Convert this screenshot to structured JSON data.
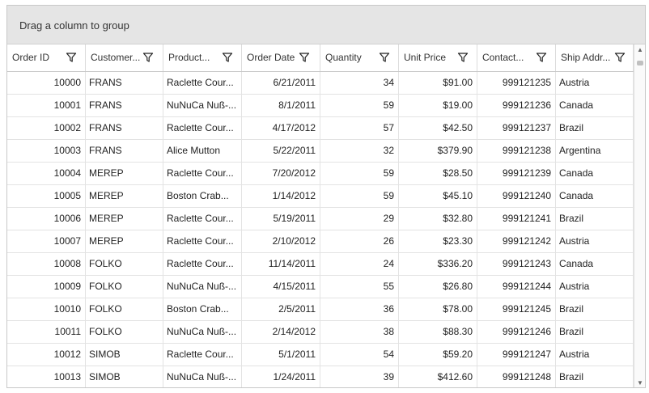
{
  "group_area": {
    "text": "Drag a column to group"
  },
  "columns": [
    {
      "label": "Order ID",
      "icon": "filter-icon"
    },
    {
      "label": "Customer...",
      "icon": "filter-icon"
    },
    {
      "label": "Product...",
      "icon": "filter-icon"
    },
    {
      "label": "Order Date",
      "icon": "filter-icon"
    },
    {
      "label": "Quantity",
      "icon": "filter-icon"
    },
    {
      "label": "Unit Price",
      "icon": "filter-icon"
    },
    {
      "label": "Contact...",
      "icon": "filter-icon"
    },
    {
      "label": "Ship Addr...",
      "icon": "filter-icon"
    }
  ],
  "rows": [
    [
      "10000",
      "FRANS",
      "Raclette Cour...",
      "6/21/2011",
      "34",
      "$91.00",
      "999121235",
      "Austria"
    ],
    [
      "10001",
      "FRANS",
      "NuNuCa Nuß-...",
      "8/1/2011",
      "59",
      "$19.00",
      "999121236",
      "Canada"
    ],
    [
      "10002",
      "FRANS",
      "Raclette Cour...",
      "4/17/2012",
      "57",
      "$42.50",
      "999121237",
      "Brazil"
    ],
    [
      "10003",
      "FRANS",
      "Alice Mutton",
      "5/22/2011",
      "32",
      "$379.90",
      "999121238",
      "Argentina"
    ],
    [
      "10004",
      "MEREP",
      "Raclette Cour...",
      "7/20/2012",
      "59",
      "$28.50",
      "999121239",
      "Canada"
    ],
    [
      "10005",
      "MEREP",
      "Boston Crab...",
      "1/14/2012",
      "59",
      "$45.10",
      "999121240",
      "Canada"
    ],
    [
      "10006",
      "MEREP",
      "Raclette Cour...",
      "5/19/2011",
      "29",
      "$32.80",
      "999121241",
      "Brazil"
    ],
    [
      "10007",
      "MEREP",
      "Raclette Cour...",
      "2/10/2012",
      "26",
      "$23.30",
      "999121242",
      "Austria"
    ],
    [
      "10008",
      "FOLKO",
      "Raclette Cour...",
      "11/14/2011",
      "24",
      "$336.20",
      "999121243",
      "Canada"
    ],
    [
      "10009",
      "FOLKO",
      "NuNuCa Nuß-...",
      "4/15/2011",
      "55",
      "$26.80",
      "999121244",
      "Austria"
    ],
    [
      "10010",
      "FOLKO",
      "Boston Crab...",
      "2/5/2011",
      "36",
      "$78.00",
      "999121245",
      "Brazil"
    ],
    [
      "10011",
      "FOLKO",
      "NuNuCa Nuß-...",
      "2/14/2012",
      "38",
      "$88.30",
      "999121246",
      "Brazil"
    ],
    [
      "10012",
      "SIMOB",
      "Raclette Cour...",
      "5/1/2011",
      "54",
      "$59.20",
      "999121247",
      "Austria"
    ],
    [
      "10013",
      "SIMOB",
      "NuNuCa Nuß-...",
      "1/24/2011",
      "39",
      "$412.60",
      "999121248",
      "Brazil"
    ]
  ],
  "scrollbar": {
    "up": "▲",
    "down": "▼"
  }
}
